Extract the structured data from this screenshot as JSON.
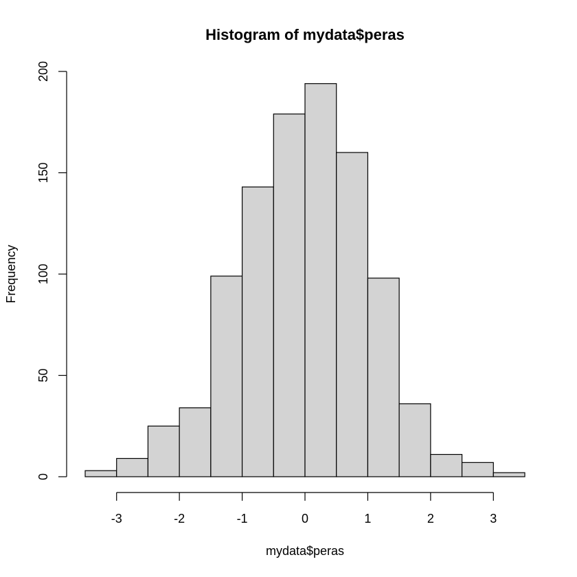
{
  "chart_data": {
    "type": "bar",
    "title": "Histogram of mydata$peras",
    "xlabel": "mydata$peras",
    "ylabel": "Frequency",
    "bins": [
      {
        "start": -3.5,
        "end": -3.0,
        "count": 3
      },
      {
        "start": -3.0,
        "end": -2.5,
        "count": 9
      },
      {
        "start": -2.5,
        "end": -2.0,
        "count": 25
      },
      {
        "start": -2.0,
        "end": -1.5,
        "count": 34
      },
      {
        "start": -1.5,
        "end": -1.0,
        "count": 99
      },
      {
        "start": -1.0,
        "end": -0.5,
        "count": 143
      },
      {
        "start": -0.5,
        "end": 0.0,
        "count": 179
      },
      {
        "start": 0.0,
        "end": 0.5,
        "count": 194
      },
      {
        "start": 0.5,
        "end": 1.0,
        "count": 160
      },
      {
        "start": 1.0,
        "end": 1.5,
        "count": 98
      },
      {
        "start": 1.5,
        "end": 2.0,
        "count": 36
      },
      {
        "start": 2.0,
        "end": 2.5,
        "count": 11
      },
      {
        "start": 2.5,
        "end": 3.0,
        "count": 7
      },
      {
        "start": 3.0,
        "end": 3.5,
        "count": 2
      }
    ],
    "xticks": [
      -3,
      -2,
      -1,
      0,
      1,
      2,
      3
    ],
    "xtick_labels": [
      "-3",
      "-2",
      "-1",
      "0",
      "1",
      "2",
      "3"
    ],
    "yticks": [
      0,
      50,
      100,
      150,
      200
    ],
    "ytick_labels": [
      "0",
      "50",
      "100",
      "150",
      "200"
    ],
    "xlim": [
      -3.5,
      3.5
    ],
    "ylim": [
      0,
      200
    ],
    "grid": false,
    "bar_color": "#d3d3d3",
    "edge_color": "#000000"
  }
}
